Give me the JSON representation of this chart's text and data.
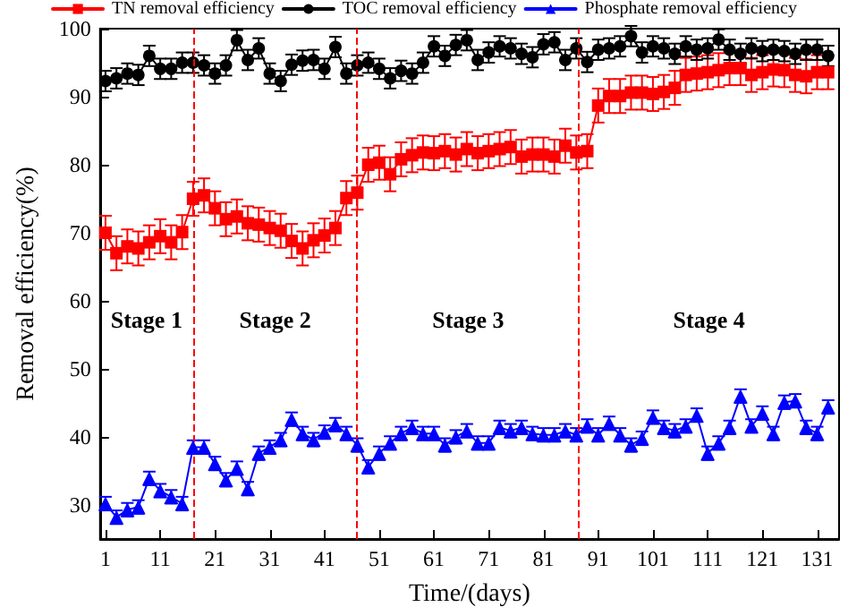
{
  "chart_data": {
    "type": "line",
    "xlabel": "Time/(days)",
    "ylabel": "Removal efficiency(%)",
    "x": [
      1,
      3,
      5,
      7,
      9,
      11,
      13,
      15,
      17,
      19,
      21,
      23,
      25,
      27,
      29,
      31,
      33,
      35,
      37,
      39,
      41,
      43,
      45,
      47,
      49,
      51,
      53,
      55,
      57,
      59,
      61,
      63,
      65,
      67,
      69,
      71,
      73,
      75,
      77,
      79,
      81,
      83,
      85,
      87,
      89,
      91,
      93,
      95,
      97,
      99,
      101,
      103,
      105,
      107,
      109,
      111,
      113,
      115,
      117,
      119,
      121,
      123,
      125,
      127,
      129,
      131,
      133
    ],
    "xlim": [
      0,
      135
    ],
    "xticks": [
      1,
      11,
      21,
      31,
      41,
      51,
      61,
      71,
      81,
      91,
      101,
      111,
      121,
      131
    ],
    "ylim": [
      25,
      100
    ],
    "yticks": [
      30,
      40,
      50,
      60,
      70,
      80,
      90,
      100
    ],
    "grid": false,
    "legend": "top",
    "line_style": "solid",
    "series": [
      {
        "name": "TN removal efficiency",
        "color": "#ff0000",
        "marker": "square",
        "values": [
          70,
          67,
          68,
          67.7,
          68.6,
          69.5,
          68.6,
          70.1,
          75,
          75.5,
          73.6,
          72,
          72.4,
          71.4,
          71.2,
          70.7,
          70.3,
          68.8,
          67.7,
          68.9,
          69.6,
          70.7,
          75.1,
          75.9,
          80,
          80.3,
          78.6,
          80.8,
          81.4,
          81.8,
          81.7,
          82,
          81.5,
          82.3,
          81.7,
          82,
          82.3,
          82.6,
          81.2,
          81.5,
          81.5,
          81.2,
          82.8,
          81.8,
          82,
          88.7,
          90.1,
          90.1,
          90.6,
          90.6,
          90.4,
          90.7,
          91.3,
          93.2,
          93.4,
          93.6,
          93.9,
          94.2,
          94.2,
          93.2,
          93.6,
          94,
          93.9,
          93.2,
          93,
          93.6,
          93.6
        ],
        "errors": [
          2.5,
          2.5,
          2.5,
          2.5,
          2.5,
          2.5,
          2.5,
          2.5,
          2.5,
          2.5,
          2.5,
          2.5,
          2.5,
          2.5,
          2.5,
          2.5,
          2.5,
          2.5,
          2.5,
          2.5,
          2.5,
          2.5,
          2.5,
          2.5,
          2.5,
          2.5,
          2.5,
          2.5,
          2.5,
          2.5,
          2.5,
          2.5,
          2.5,
          2.5,
          2.5,
          2.5,
          2.5,
          2.5,
          2.5,
          2.5,
          2.5,
          2.5,
          2.5,
          2.5,
          2.5,
          2.5,
          2.5,
          2.5,
          2.5,
          2.5,
          2.5,
          2.5,
          2.5,
          2.5,
          2.5,
          2.5,
          2.5,
          2.5,
          2.5,
          2.5,
          2.5,
          2.5,
          2.5,
          2.5,
          2.5,
          2.5,
          2.5
        ]
      },
      {
        "name": "TOC removal efficiency",
        "color": "#000000",
        "marker": "circle",
        "values": [
          92.3,
          92.7,
          93.4,
          93.2,
          96,
          94.1,
          94.1,
          95,
          95,
          94.6,
          93.4,
          94.6,
          98.3,
          95.4,
          97.1,
          93.4,
          92.3,
          94.7,
          95.3,
          95.4,
          94.1,
          97.3,
          93.4,
          94.6,
          95,
          94.1,
          92.7,
          93.8,
          93.4,
          95,
          97.4,
          96,
          97.6,
          98.3,
          95.4,
          96.5,
          97.4,
          97.1,
          96.3,
          95.8,
          97.7,
          98,
          95.4,
          97.1,
          95.1,
          96.9,
          97.1,
          97.4,
          98.9,
          96.5,
          97.4,
          97.1,
          96.3,
          97.4,
          96.9,
          97.1,
          98.4,
          96.9,
          96.3,
          97.1,
          96.7,
          96.9,
          96.7,
          96.3,
          96.9,
          96.9,
          96
        ],
        "errors": [
          1.5,
          1.5,
          1.5,
          1.5,
          1.5,
          1.5,
          1.5,
          1.5,
          1.5,
          1.5,
          1.5,
          1.5,
          1.5,
          1.5,
          1.5,
          1.5,
          1.5,
          1.5,
          1.5,
          1.5,
          1.5,
          1.5,
          1.5,
          1.5,
          1.5,
          1.5,
          1.5,
          1.5,
          1.5,
          1.5,
          1.5,
          1.5,
          1.5,
          1.5,
          1.5,
          1.5,
          1.5,
          1.5,
          1.5,
          1.5,
          1.5,
          1.5,
          1.5,
          1.5,
          1.5,
          1.5,
          1.5,
          1.5,
          1.5,
          1.5,
          1.5,
          1.5,
          1.5,
          1.5,
          1.5,
          1.5,
          1.5,
          1.5,
          1.5,
          1.5,
          1.5,
          1.5,
          1.5,
          1.5,
          1.5,
          1.5,
          1.5
        ]
      },
      {
        "name": "Phosphate removal efficiency",
        "color": "#0000ff",
        "marker": "triangle",
        "values": [
          30.2,
          28.2,
          29.3,
          29.7,
          33.9,
          32.1,
          31.2,
          30.2,
          38.5,
          38.5,
          36.1,
          33.7,
          35.4,
          32.4,
          37.6,
          38.5,
          39.6,
          42.6,
          40.5,
          39.6,
          40.7,
          41.8,
          40.5,
          38.8,
          35.6,
          37.6,
          39.1,
          40.5,
          41.4,
          40.5,
          40.5,
          38.8,
          40,
          40.9,
          39.1,
          39.1,
          41.4,
          40.9,
          41.4,
          40.5,
          40.3,
          40.3,
          40.9,
          40.3,
          41.6,
          40.3,
          42,
          40.3,
          38.8,
          39.8,
          42.9,
          41.4,
          40.9,
          41.6,
          43.2,
          37.6,
          39.1,
          41.4,
          46,
          41.6,
          43.5,
          40.5,
          45.1,
          45.3,
          41.4,
          40.5,
          44.4
        ],
        "errors": [
          1,
          1,
          1,
          1,
          1,
          1,
          1,
          1,
          1,
          1,
          1,
          1,
          1,
          1,
          1,
          1,
          1,
          1,
          1,
          1,
          1,
          1,
          1,
          1,
          1,
          1,
          1,
          1,
          1,
          1,
          1,
          1,
          1,
          1,
          1,
          1,
          1,
          1,
          1,
          1,
          1,
          1,
          1,
          1,
          1,
          1,
          1,
          1,
          1,
          1,
          1,
          1,
          1,
          1,
          1,
          1,
          1,
          1,
          1,
          1,
          1,
          1,
          1,
          1,
          1,
          1,
          1
        ]
      }
    ],
    "ref_lines": [
      {
        "axis": "x",
        "value": 17,
        "color": "#ff0000",
        "line_style": "dashed"
      },
      {
        "axis": "x",
        "value": 47,
        "color": "#ff0000",
        "line_style": "dashed"
      },
      {
        "axis": "x",
        "value": 87.5,
        "color": "#ff0000",
        "line_style": "dashed"
      }
    ],
    "annotations": [
      "Stage 1",
      "Stage 2",
      "Stage 3",
      "Stage 4"
    ]
  }
}
